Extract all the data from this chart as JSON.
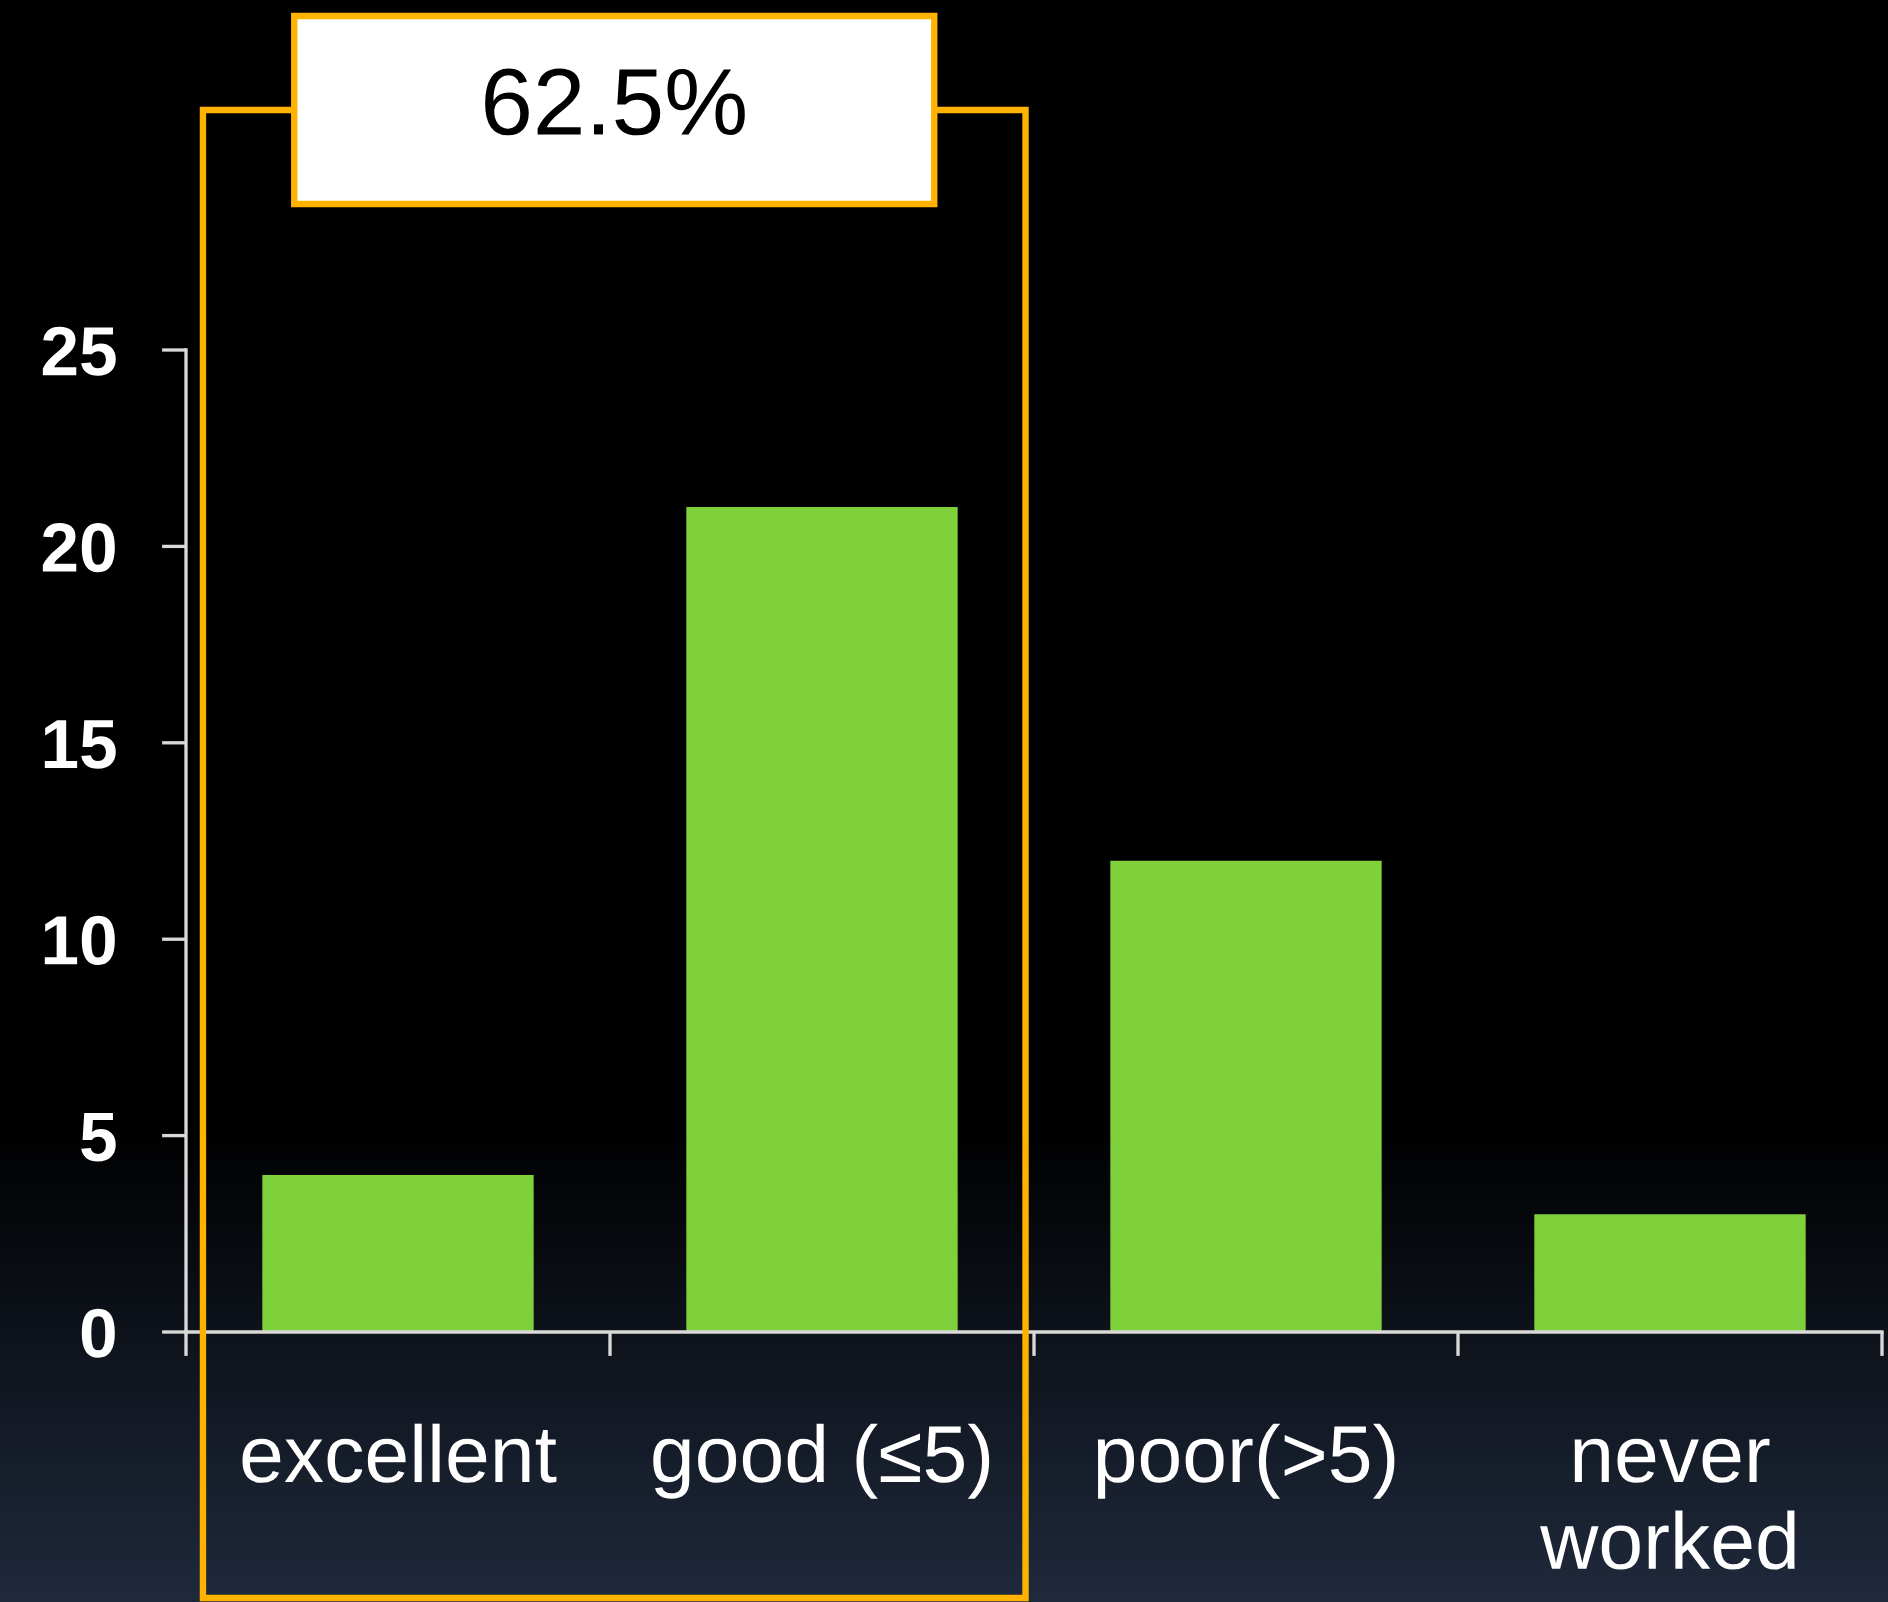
{
  "chart_data": {
    "type": "bar",
    "categories": [
      "excellent",
      "good (≤5)",
      "poor(>5)",
      "never\nworked"
    ],
    "values": [
      4,
      21,
      12,
      3
    ],
    "color": "#7fd13b",
    "ylim": [
      0,
      25
    ],
    "yticks": [
      0,
      5,
      10,
      15,
      20,
      25
    ],
    "annotations": [
      "62.5%"
    ]
  }
}
